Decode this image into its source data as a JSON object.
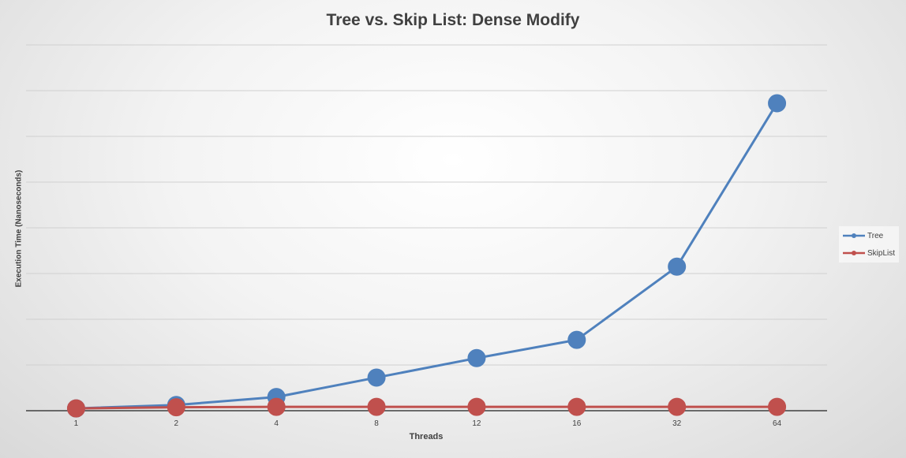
{
  "chart_data": {
    "type": "line",
    "title": "Tree vs. Skip List: Dense Modify",
    "xlabel": "Threads",
    "ylabel": "Execution Time (Nanoseconds)",
    "categories": [
      "1",
      "2",
      "4",
      "8",
      "12",
      "16",
      "32",
      "64"
    ],
    "series": [
      {
        "name": "Tree",
        "color": "#4f81bd",
        "values": [
          0.1,
          0.25,
          0.6,
          1.45,
          2.3,
          3.1,
          6.3,
          13.45
        ]
      },
      {
        "name": "SkipList",
        "color": "#c0504d",
        "values": [
          0.1,
          0.15,
          0.17,
          0.17,
          0.17,
          0.17,
          0.17,
          0.17
        ]
      }
    ],
    "ylim": [
      0,
      16
    ],
    "grid": true,
    "y_tick_labels_shown": false,
    "legend": "right"
  }
}
